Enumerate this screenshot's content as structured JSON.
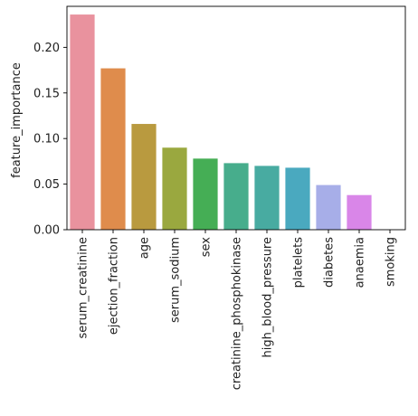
{
  "chart_data": {
    "type": "bar",
    "title": "",
    "xlabel": "",
    "ylabel": "feature_importance",
    "categories": [
      "serum_creatinine",
      "ejection_fraction",
      "age",
      "serum_sodium",
      "sex",
      "creatinine_phosphokinase",
      "high_blood_pressure",
      "platelets",
      "diabetes",
      "anaemia",
      "smoking"
    ],
    "values": [
      0.236,
      0.177,
      0.116,
      0.09,
      0.078,
      0.073,
      0.07,
      0.068,
      0.049,
      0.038,
      0.0
    ],
    "colors": [
      "#e9929e",
      "#df8c4c",
      "#b99a3f",
      "#9aa83f",
      "#45ae55",
      "#47ad8c",
      "#48aba1",
      "#4aa9bf",
      "#a7aee8",
      "#d986e8",
      "#ea8fcd"
    ],
    "ylim": [
      0,
      0.245
    ],
    "yticks": [
      0.0,
      0.05,
      0.1,
      0.15,
      0.2
    ],
    "ytick_labels": [
      "0.00",
      "0.05",
      "0.10",
      "0.15",
      "0.20"
    ],
    "grid": false,
    "legend": "none"
  }
}
